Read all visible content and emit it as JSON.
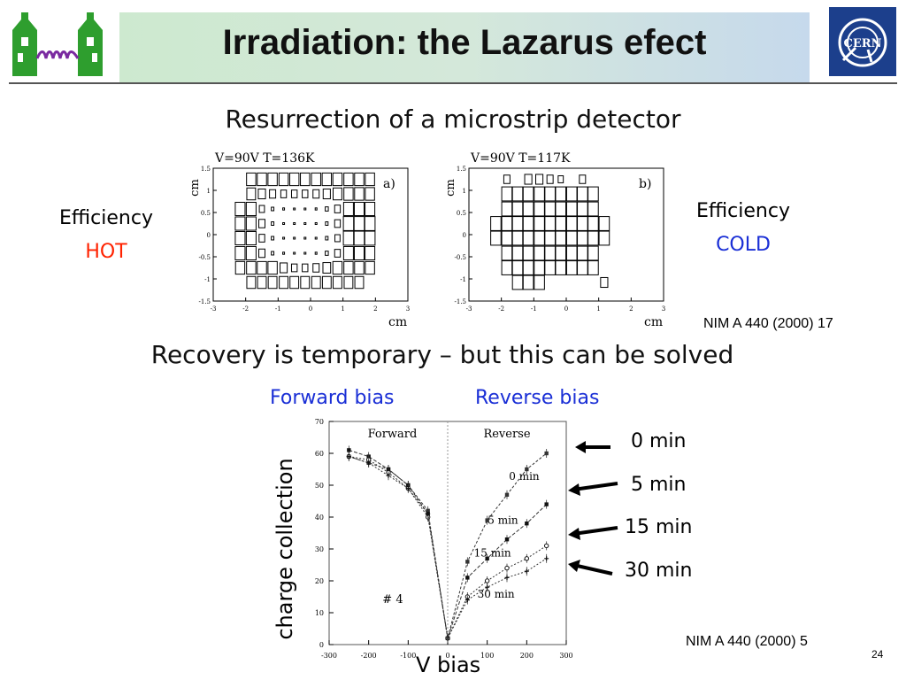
{
  "slide": {
    "title": "Irradiation: the Lazarus efect",
    "subtitle_1": "Resurrection of a microstrip detector",
    "subtitle_2": "Recovery is temporary – but this can be solved",
    "page_number": "24"
  },
  "colors": {
    "hot": "#ff2200",
    "cold": "#1a2fd6",
    "bias_labels": "#1a2fd6",
    "rd50_logo_green": "#2e9e2e",
    "cern_logo_blue": "#1c3f8c"
  },
  "icons": {
    "left_logo": "rd50-house-coil-logo",
    "right_logo": "cern-logo",
    "arrow": "left-arrow-icon"
  },
  "left_block": {
    "line1": "Efficiency",
    "line2": "HOT"
  },
  "right_block": {
    "line1": "Efficiency",
    "line2": "COLD"
  },
  "reference_1": "NIM A 440 (2000) 17",
  "reference_2": "NIM A 440 (2000) 5",
  "cern_logo_text": "CERN",
  "bias_labels": {
    "forward": "Forward bias",
    "reverse": "Reverse bias"
  },
  "plot_axis_labels": {
    "y": "charge collection",
    "x": "V bias"
  },
  "time_labels": [
    "0 min",
    "5 min",
    "15 min",
    "30 min"
  ],
  "chart_data": [
    {
      "type": "heatmap",
      "title": "V=90V T=136K",
      "panel_label": "a)",
      "xlabel": "cm",
      "ylabel": "cm",
      "xlim": [
        -3,
        3
      ],
      "ylim": [
        -1.5,
        1.5
      ],
      "x_ticks": [
        "-3",
        "-2",
        "-1",
        "0",
        "1",
        "2",
        "3"
      ],
      "y_ticks": [
        "1.5",
        "1",
        "0.5",
        "0",
        "-0.5",
        "-1",
        "-1.5"
      ],
      "columns": [
        -2.5,
        -2.17,
        -1.83,
        -1.5,
        -1.17,
        -0.83,
        -0.5,
        -0.17,
        0.17,
        0.5,
        0.83,
        1.17,
        1.5,
        1.83,
        2.17
      ],
      "rows": [
        1.25,
        0.92,
        0.58,
        0.25,
        -0.08,
        -0.42,
        -0.75,
        -1.08
      ],
      "grid": [
        [
          0,
          0,
          0.9,
          0.9,
          0.9,
          0.9,
          0.9,
          0.9,
          0.9,
          0.9,
          0.9,
          0.9,
          0.9,
          0.9,
          0
        ],
        [
          0,
          0,
          0.85,
          0.7,
          0.6,
          0.55,
          0.55,
          0.55,
          0.6,
          0.7,
          0.85,
          0.9,
          0.9,
          0.9,
          0
        ],
        [
          0,
          0.95,
          0.95,
          0.5,
          0.25,
          0.15,
          0.1,
          0.1,
          0.15,
          0.3,
          0.55,
          0.95,
          0.95,
          0.95,
          0
        ],
        [
          0,
          0.95,
          0.95,
          0.6,
          0.25,
          0.1,
          0.05,
          0.05,
          0.1,
          0.25,
          0.55,
          1,
          1,
          1,
          0
        ],
        [
          0,
          0.95,
          0.95,
          0.55,
          0.25,
          0.1,
          0.05,
          0.05,
          0.1,
          0.25,
          0.5,
          1,
          1,
          1,
          0
        ],
        [
          0,
          0.95,
          0.95,
          0.6,
          0.25,
          0.15,
          0.1,
          0.1,
          0.15,
          0.3,
          0.55,
          0.95,
          0.95,
          0.95,
          0
        ],
        [
          0,
          0.9,
          0.9,
          0.9,
          0.9,
          0.7,
          0.55,
          0.55,
          0.6,
          0.75,
          0.9,
          0.9,
          0.9,
          0.9,
          0
        ],
        [
          0,
          0,
          0.85,
          0.85,
          0.85,
          0.85,
          0.85,
          0.85,
          0.85,
          0.85,
          0.85,
          0.85,
          0.85,
          0,
          0
        ]
      ]
    },
    {
      "type": "heatmap",
      "title": "V=90V T=117K",
      "panel_label": "b)",
      "xlabel": "cm",
      "ylabel": "cm",
      "xlim": [
        -3,
        3
      ],
      "ylim": [
        -1.5,
        1.5
      ],
      "x_ticks": [
        "-3",
        "-2",
        "-1",
        "0",
        "1",
        "2",
        "3"
      ],
      "y_ticks": [
        "1.5",
        "1",
        "0.5",
        "0",
        "-0.5",
        "-1",
        "-1.5"
      ],
      "columns": [
        -2.17,
        -1.83,
        -1.5,
        -1.17,
        -0.83,
        -0.5,
        -0.17,
        0.17,
        0.5,
        0.83,
        1.17
      ],
      "rows": [
        1.25,
        0.92,
        0.58,
        0.25,
        -0.08,
        -0.42,
        -0.75,
        -1.08
      ],
      "grid": [
        [
          0,
          0.6,
          0,
          0.7,
          0.7,
          0.6,
          0.5,
          0,
          0.6,
          0,
          0
        ],
        [
          0,
          1,
          1,
          1,
          1,
          1,
          1,
          1,
          1,
          1,
          0
        ],
        [
          0,
          1,
          1,
          1,
          1,
          1,
          1,
          1,
          1,
          1,
          0
        ],
        [
          1,
          1,
          1,
          1,
          1,
          1,
          1,
          1,
          1,
          1,
          1
        ],
        [
          1,
          1,
          1,
          1,
          1,
          1,
          1,
          1,
          1,
          1,
          1
        ],
        [
          0,
          1,
          1,
          1,
          1,
          1,
          1,
          1,
          1,
          1,
          0
        ],
        [
          0,
          1,
          1,
          1,
          1,
          1,
          1,
          1,
          1,
          1,
          0
        ],
        [
          0,
          0,
          1,
          1,
          1,
          0,
          0,
          0,
          0,
          0,
          0.7
        ]
      ]
    },
    {
      "type": "line",
      "xlim": [
        -300,
        300
      ],
      "ylim": [
        0,
        70
      ],
      "x_ticks": [
        -300,
        -200,
        -100,
        0,
        100,
        200,
        300
      ],
      "y_ticks": [
        0,
        10,
        20,
        30,
        40,
        50,
        60,
        70
      ],
      "regions": [
        "Forward",
        "Reverse"
      ],
      "annotation": "# 4",
      "series": [
        {
          "name": "0 min",
          "x": [
            -250,
            -200,
            -150,
            -100,
            -50,
            0,
            50,
            100,
            150,
            200,
            250
          ],
          "y": [
            59,
            57,
            55,
            50,
            42,
            2,
            26,
            39,
            47,
            55,
            60
          ]
        },
        {
          "name": "5 min",
          "x": [
            -250,
            -200,
            -150,
            -100,
            -50,
            0,
            50,
            100,
            150,
            200,
            250
          ],
          "y": [
            61,
            59,
            55,
            50,
            41,
            2,
            21,
            27,
            33,
            38,
            44
          ]
        },
        {
          "name": "15 min",
          "x": [
            -250,
            -200,
            -150,
            -100,
            -50,
            0,
            50,
            100,
            150,
            200,
            250
          ],
          "y": [
            59,
            58,
            54,
            49,
            40,
            2,
            15,
            20,
            24,
            27,
            31
          ]
        },
        {
          "name": "30 min",
          "x": [
            -250,
            -200,
            -150,
            -100,
            -50,
            0,
            50,
            100,
            150,
            200,
            250
          ],
          "y": [
            59,
            57,
            53,
            49,
            41,
            2,
            14,
            18,
            21,
            23,
            27
          ]
        }
      ]
    }
  ]
}
